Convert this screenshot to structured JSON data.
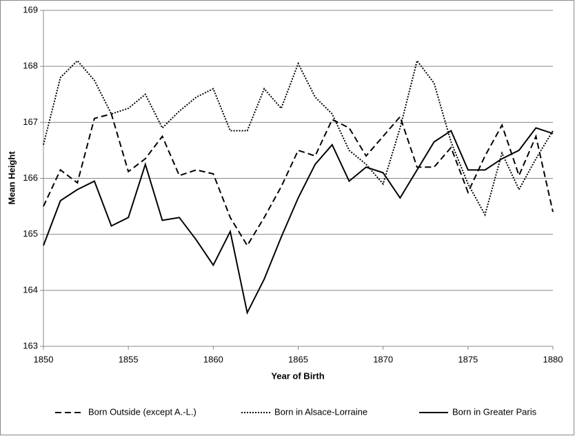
{
  "chart_data": {
    "type": "line",
    "x_label": "Year of Birth",
    "y_label": "Mean Height",
    "x": [
      1850,
      1851,
      1852,
      1853,
      1854,
      1855,
      1856,
      1857,
      1858,
      1859,
      1860,
      1861,
      1862,
      1863,
      1864,
      1865,
      1866,
      1867,
      1868,
      1869,
      1870,
      1871,
      1872,
      1873,
      1874,
      1875,
      1876,
      1877,
      1878,
      1879,
      1880
    ],
    "xlim": [
      1850,
      1880
    ],
    "xticks": [
      1850,
      1855,
      1860,
      1865,
      1870,
      1875,
      1880
    ],
    "ylim": [
      163,
      169
    ],
    "yticks": [
      163,
      164,
      165,
      166,
      167,
      168,
      169
    ],
    "grid": true,
    "legend": "bottom",
    "series": [
      {
        "name": "Born Outside (except A.-L.)",
        "color": "#000000",
        "dash": "dashed",
        "values": [
          165.5,
          166.15,
          165.92,
          167.07,
          167.15,
          166.12,
          166.35,
          166.75,
          166.05,
          166.15,
          166.08,
          165.3,
          164.8,
          165.3,
          165.85,
          166.5,
          166.4,
          167.05,
          166.9,
          166.4,
          166.75,
          167.1,
          166.2,
          166.2,
          166.55,
          165.75,
          166.4,
          166.95,
          166.05,
          166.75,
          165.4
        ]
      },
      {
        "name": "Born in Alsace-Lorraine",
        "color": "#000000",
        "dash": "dotted",
        "values": [
          166.6,
          167.8,
          168.1,
          167.75,
          167.15,
          167.25,
          167.5,
          166.9,
          167.2,
          167.45,
          167.6,
          166.85,
          166.85,
          167.6,
          167.25,
          168.05,
          167.45,
          167.15,
          166.5,
          166.25,
          165.9,
          166.9,
          168.1,
          167.7,
          166.65,
          165.9,
          165.35,
          166.45,
          165.8,
          166.35,
          166.85
        ]
      },
      {
        "name": "Born in Greater Paris",
        "color": "#000000",
        "dash": "solid",
        "values": [
          164.8,
          165.6,
          165.8,
          165.95,
          165.15,
          165.3,
          166.25,
          165.25,
          165.3,
          164.9,
          164.45,
          165.05,
          163.6,
          164.2,
          164.95,
          165.65,
          166.25,
          166.6,
          165.95,
          166.2,
          166.1,
          165.65,
          166.15,
          166.65,
          166.85,
          166.15,
          166.15,
          166.35,
          166.5,
          166.9,
          166.8
        ]
      }
    ]
  }
}
